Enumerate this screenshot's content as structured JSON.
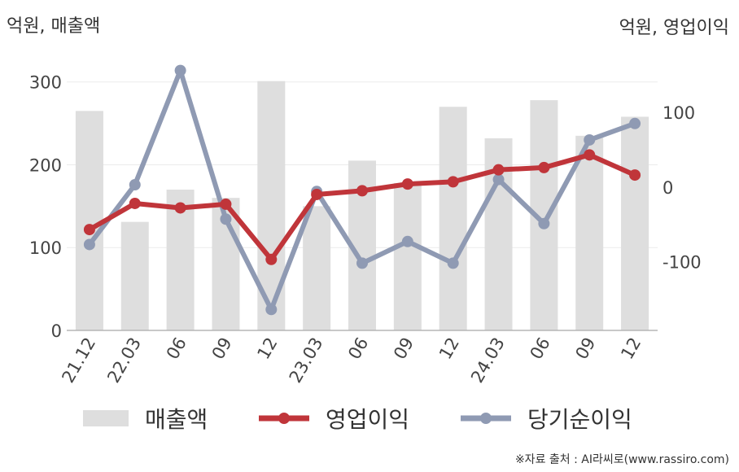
{
  "unit_left": "억원, 매출액",
  "unit_right": "억원, 영업이익",
  "source": "※자료 출처 : AI라씨로(www.rassiro.com)",
  "colors": {
    "bar": "#dedede",
    "op": "#c0353a",
    "net": "#8f9ab3"
  },
  "chart_data": {
    "type": "bar",
    "categories": [
      "21.12",
      "22.03",
      "06",
      "09",
      "12",
      "23.03",
      "06",
      "09",
      "12",
      "24.03",
      "06",
      "09",
      "12"
    ],
    "left_axis": {
      "ticks": [
        0,
        100,
        200,
        300
      ],
      "ylim": [
        0,
        340
      ]
    },
    "right_axis": {
      "ticks": [
        -100,
        0,
        100
      ],
      "ylim": [
        -192,
        185
      ]
    },
    "series": [
      {
        "name": "매출액",
        "type": "bar",
        "axis": "left",
        "values": [
          265,
          131,
          170,
          160,
          301,
          150,
          205,
          178,
          270,
          232,
          278,
          235,
          258
        ]
      },
      {
        "name": "영업이익",
        "type": "line",
        "axis": "right",
        "values": [
          -57,
          -22,
          -28,
          -23,
          -97,
          -10,
          -5,
          4,
          7,
          23,
          26,
          43,
          16
        ]
      },
      {
        "name": "당기순이익",
        "type": "line",
        "axis": "right",
        "values": [
          -77,
          3,
          156,
          -43,
          -164,
          -6,
          -102,
          -73,
          -102,
          10,
          -49,
          63,
          85
        ]
      }
    ]
  }
}
